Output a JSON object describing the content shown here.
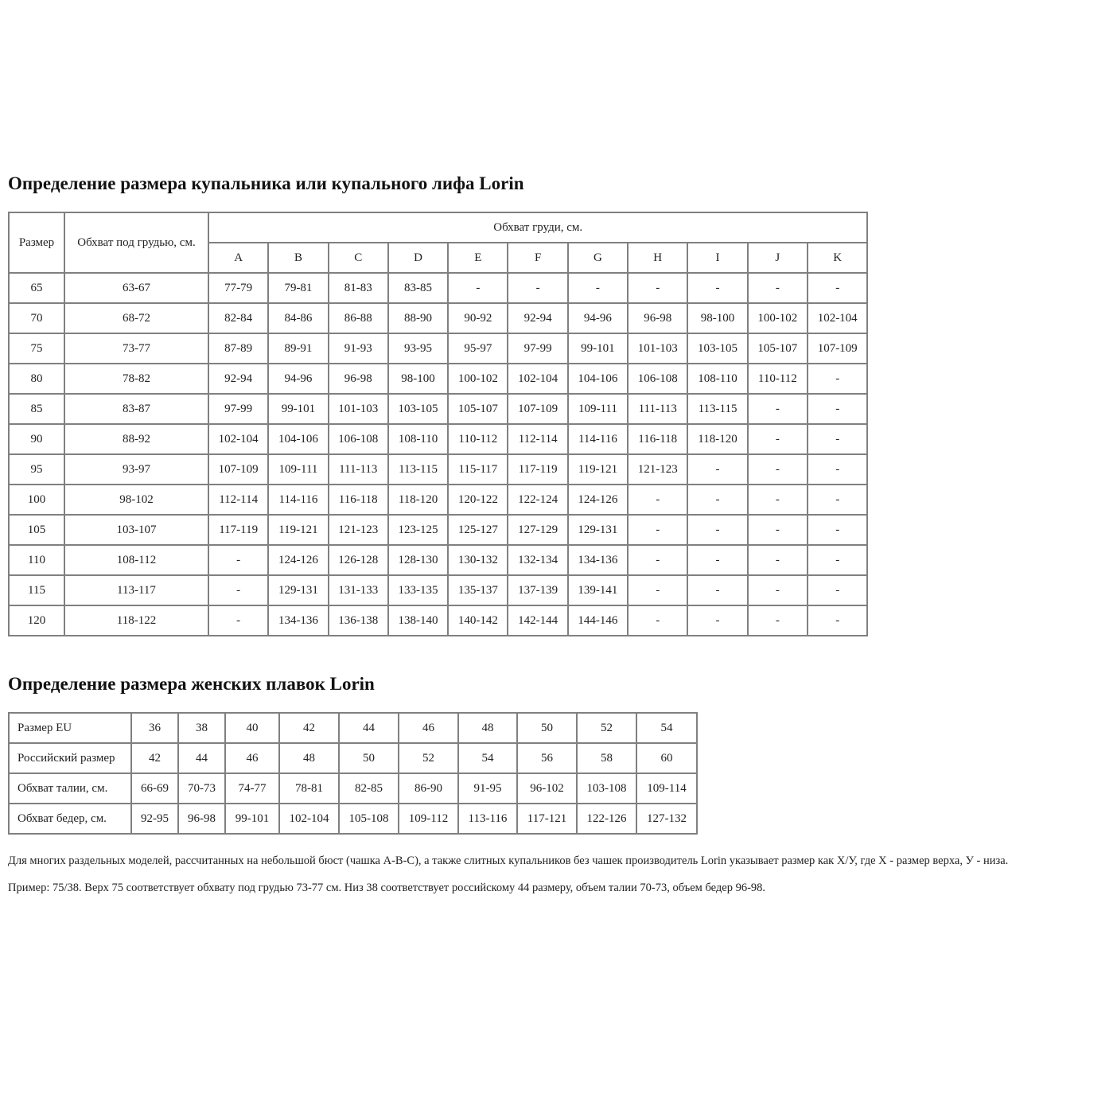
{
  "bra_section": {
    "title": "Определение размера купальника или купального лифа Lorin",
    "header_size": "Размер",
    "header_underbust": "Обхват под грудью, см.",
    "header_bust": "Обхват груди, см.",
    "cups": [
      "A",
      "B",
      "C",
      "D",
      "E",
      "F",
      "G",
      "H",
      "I",
      "J",
      "K"
    ],
    "rows": [
      {
        "size": "65",
        "underbust": "63-67",
        "values": [
          "77-79",
          "79-81",
          "81-83",
          "83-85",
          "-",
          "-",
          "-",
          "-",
          "-",
          "-",
          "-"
        ]
      },
      {
        "size": "70",
        "underbust": "68-72",
        "values": [
          "82-84",
          "84-86",
          "86-88",
          "88-90",
          "90-92",
          "92-94",
          "94-96",
          "96-98",
          "98-100",
          "100-102",
          "102-104"
        ]
      },
      {
        "size": "75",
        "underbust": "73-77",
        "values": [
          "87-89",
          "89-91",
          "91-93",
          "93-95",
          "95-97",
          "97-99",
          "99-101",
          "101-103",
          "103-105",
          "105-107",
          "107-109"
        ]
      },
      {
        "size": "80",
        "underbust": "78-82",
        "values": [
          "92-94",
          "94-96",
          "96-98",
          "98-100",
          "100-102",
          "102-104",
          "104-106",
          "106-108",
          "108-110",
          "110-112",
          "-"
        ]
      },
      {
        "size": "85",
        "underbust": "83-87",
        "values": [
          "97-99",
          "99-101",
          "101-103",
          "103-105",
          "105-107",
          "107-109",
          "109-111",
          "111-113",
          "113-115",
          "-",
          "-"
        ]
      },
      {
        "size": "90",
        "underbust": "88-92",
        "values": [
          "102-104",
          "104-106",
          "106-108",
          "108-110",
          "110-112",
          "112-114",
          "114-116",
          "116-118",
          "118-120",
          "-",
          "-"
        ]
      },
      {
        "size": "95",
        "underbust": "93-97",
        "values": [
          "107-109",
          "109-111",
          "111-113",
          "113-115",
          "115-117",
          "117-119",
          "119-121",
          "121-123",
          "-",
          "-",
          "-"
        ]
      },
      {
        "size": "100",
        "underbust": "98-102",
        "values": [
          "112-114",
          "114-116",
          "116-118",
          "118-120",
          "120-122",
          "122-124",
          "124-126",
          "-",
          "-",
          "-",
          "-"
        ]
      },
      {
        "size": "105",
        "underbust": "103-107",
        "values": [
          "117-119",
          "119-121",
          "121-123",
          "123-125",
          "125-127",
          "127-129",
          "129-131",
          "-",
          "-",
          "-",
          "-"
        ]
      },
      {
        "size": "110",
        "underbust": "108-112",
        "values": [
          "-",
          "124-126",
          "126-128",
          "128-130",
          "130-132",
          "132-134",
          "134-136",
          "-",
          "-",
          "-",
          "-"
        ]
      },
      {
        "size": "115",
        "underbust": "113-117",
        "values": [
          "-",
          "129-131",
          "131-133",
          "133-135",
          "135-137",
          "137-139",
          "139-141",
          "-",
          "-",
          "-",
          "-"
        ]
      },
      {
        "size": "120",
        "underbust": "118-122",
        "values": [
          "-",
          "134-136",
          "136-138",
          "138-140",
          "140-142",
          "142-144",
          "144-146",
          "-",
          "-",
          "-",
          "-"
        ]
      }
    ]
  },
  "briefs_section": {
    "title": "Определение размера женских плавок Lorin",
    "rows": [
      {
        "label": "Размер EU",
        "values": [
          "36",
          "38",
          "40",
          "42",
          "44",
          "46",
          "48",
          "50",
          "52",
          "54"
        ]
      },
      {
        "label": "Российский размер",
        "values": [
          "42",
          "44",
          "46",
          "48",
          "50",
          "52",
          "54",
          "56",
          "58",
          "60"
        ]
      },
      {
        "label": "Обхват талии, см.",
        "values": [
          "66-69",
          "70-73",
          "74-77",
          "78-81",
          "82-85",
          "86-90",
          "91-95",
          "96-102",
          "103-108",
          "109-114"
        ]
      },
      {
        "label": "Обхват бедер, см.",
        "values": [
          "92-95",
          "96-98",
          "99-101",
          "102-104",
          "105-108",
          "109-112",
          "113-116",
          "117-121",
          "122-126",
          "127-132"
        ]
      }
    ]
  },
  "notes": {
    "note1": "Для многих раздельных моделей, рассчитанных на небольшой бюст (чашка А-В-С), а также слитных купальников без чашек производитель Lorin указывает размер как Х/У, где Х - размер верха, У - низа.",
    "note2": "Пример: 75/38. Верх 75 соответствует обхвату под грудью 73-77 см. Низ 38 соответствует российскому 44 размеру, объем талии 70-73, объем бедер 96-98."
  }
}
